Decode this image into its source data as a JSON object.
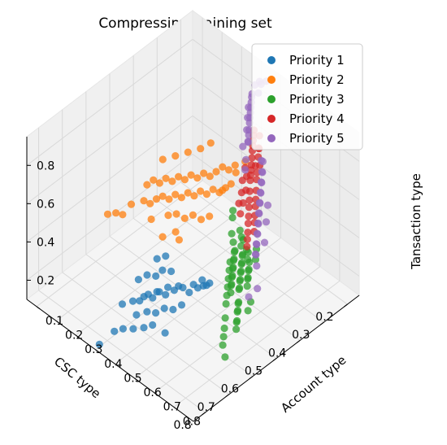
{
  "chart_data": {
    "type": "scatter",
    "projection": "3d",
    "title": "Compressing training set",
    "xlabel": "CSC type",
    "ylabel": "Account type",
    "zlabel": "Tansaction type",
    "xlim": [
      0.15,
      0.85
    ],
    "ylim": [
      0.05,
      0.9
    ],
    "zlim": [
      0.1,
      0.95
    ],
    "xticks": [
      "0.2",
      "0.3",
      "0.4",
      "0.5",
      "0.6",
      "0.7",
      "0.8"
    ],
    "yticks": [
      "0.1",
      "0.2",
      "0.3",
      "0.4",
      "0.5",
      "0.6",
      "0.7",
      "0.8"
    ],
    "zticks": [
      "0.2",
      "0.4",
      "0.6",
      "0.8"
    ],
    "grid": true,
    "legend_position": "top-right",
    "series": [
      {
        "name": "Priority 1",
        "color": "#1f77b4",
        "points": [
          [
            0.72,
            0.38,
            0.2
          ],
          [
            0.7,
            0.41,
            0.22
          ],
          [
            0.68,
            0.42,
            0.21
          ],
          [
            0.67,
            0.43,
            0.23
          ],
          [
            0.66,
            0.44,
            0.24
          ],
          [
            0.65,
            0.45,
            0.22
          ],
          [
            0.64,
            0.46,
            0.25
          ],
          [
            0.63,
            0.46,
            0.24
          ],
          [
            0.62,
            0.48,
            0.23
          ],
          [
            0.61,
            0.48,
            0.26
          ],
          [
            0.6,
            0.5,
            0.25
          ],
          [
            0.59,
            0.51,
            0.27
          ],
          [
            0.58,
            0.52,
            0.26
          ],
          [
            0.57,
            0.54,
            0.24
          ],
          [
            0.56,
            0.55,
            0.28
          ],
          [
            0.55,
            0.56,
            0.26
          ],
          [
            0.54,
            0.57,
            0.3
          ],
          [
            0.53,
            0.58,
            0.27
          ],
          [
            0.71,
            0.44,
            0.18
          ],
          [
            0.69,
            0.47,
            0.2
          ],
          [
            0.67,
            0.49,
            0.19
          ],
          [
            0.65,
            0.51,
            0.21
          ],
          [
            0.63,
            0.53,
            0.2
          ],
          [
            0.61,
            0.55,
            0.22
          ],
          [
            0.66,
            0.39,
            0.28
          ],
          [
            0.64,
            0.41,
            0.3
          ],
          [
            0.62,
            0.43,
            0.29
          ],
          [
            0.6,
            0.44,
            0.31
          ],
          [
            0.58,
            0.46,
            0.3
          ],
          [
            0.74,
            0.46,
            0.15
          ],
          [
            0.72,
            0.49,
            0.16
          ],
          [
            0.7,
            0.51,
            0.17
          ],
          [
            0.56,
            0.6,
            0.31
          ],
          [
            0.55,
            0.62,
            0.33
          ],
          [
            0.77,
            0.4,
            0.12
          ],
          [
            0.75,
            0.42,
            0.13
          ],
          [
            0.59,
            0.4,
            0.33
          ],
          [
            0.57,
            0.42,
            0.34
          ],
          [
            0.68,
            0.55,
            0.14
          ],
          [
            0.8,
            0.36,
            0.05
          ]
        ]
      },
      {
        "name": "Priority 2",
        "color": "#ff7f0e",
        "points": [
          [
            0.45,
            0.18,
            0.42
          ],
          [
            0.44,
            0.2,
            0.45
          ],
          [
            0.43,
            0.22,
            0.44
          ],
          [
            0.42,
            0.24,
            0.47
          ],
          [
            0.41,
            0.26,
            0.46
          ],
          [
            0.4,
            0.28,
            0.49
          ],
          [
            0.39,
            0.3,
            0.48
          ],
          [
            0.38,
            0.32,
            0.51
          ],
          [
            0.37,
            0.34,
            0.5
          ],
          [
            0.36,
            0.36,
            0.53
          ],
          [
            0.35,
            0.38,
            0.52
          ],
          [
            0.34,
            0.4,
            0.55
          ],
          [
            0.46,
            0.24,
            0.4
          ],
          [
            0.45,
            0.26,
            0.42
          ],
          [
            0.44,
            0.28,
            0.41
          ],
          [
            0.43,
            0.3,
            0.44
          ],
          [
            0.42,
            0.32,
            0.43
          ],
          [
            0.41,
            0.34,
            0.46
          ],
          [
            0.4,
            0.36,
            0.45
          ],
          [
            0.39,
            0.38,
            0.48
          ],
          [
            0.38,
            0.4,
            0.47
          ],
          [
            0.37,
            0.42,
            0.5
          ],
          [
            0.36,
            0.44,
            0.49
          ],
          [
            0.35,
            0.46,
            0.52
          ],
          [
            0.48,
            0.2,
            0.38
          ],
          [
            0.47,
            0.22,
            0.37
          ],
          [
            0.46,
            0.3,
            0.36
          ],
          [
            0.45,
            0.33,
            0.38
          ],
          [
            0.44,
            0.36,
            0.37
          ],
          [
            0.43,
            0.39,
            0.4
          ],
          [
            0.42,
            0.42,
            0.39
          ],
          [
            0.41,
            0.45,
            0.42
          ],
          [
            0.33,
            0.42,
            0.58
          ],
          [
            0.32,
            0.44,
            0.57
          ],
          [
            0.31,
            0.46,
            0.6
          ],
          [
            0.5,
            0.16,
            0.35
          ],
          [
            0.49,
            0.25,
            0.33
          ],
          [
            0.47,
            0.35,
            0.32
          ],
          [
            0.38,
            0.48,
            0.55
          ],
          [
            0.36,
            0.5,
            0.58
          ],
          [
            0.34,
            0.5,
            0.62
          ],
          [
            0.52,
            0.14,
            0.3
          ],
          [
            0.4,
            0.2,
            0.52
          ],
          [
            0.38,
            0.24,
            0.55
          ],
          [
            0.36,
            0.28,
            0.58
          ],
          [
            0.34,
            0.32,
            0.61
          ],
          [
            0.5,
            0.32,
            0.3
          ],
          [
            0.48,
            0.38,
            0.31
          ],
          [
            0.3,
            0.5,
            0.64
          ],
          [
            0.55,
            0.1,
            0.3
          ],
          [
            0.54,
            0.13,
            0.32
          ],
          [
            0.33,
            0.36,
            0.66
          ]
        ]
      },
      {
        "name": "Priority 3",
        "color": "#2ca02c",
        "points": [
          [
            0.45,
            0.62,
            0.45
          ],
          [
            0.46,
            0.64,
            0.43
          ],
          [
            0.47,
            0.65,
            0.44
          ],
          [
            0.48,
            0.66,
            0.42
          ],
          [
            0.49,
            0.67,
            0.43
          ],
          [
            0.5,
            0.68,
            0.41
          ],
          [
            0.51,
            0.69,
            0.42
          ],
          [
            0.52,
            0.7,
            0.4
          ],
          [
            0.53,
            0.71,
            0.41
          ],
          [
            0.54,
            0.72,
            0.39
          ],
          [
            0.55,
            0.73,
            0.4
          ],
          [
            0.56,
            0.74,
            0.38
          ],
          [
            0.44,
            0.6,
            0.47
          ],
          [
            0.45,
            0.66,
            0.46
          ],
          [
            0.46,
            0.68,
            0.44
          ],
          [
            0.47,
            0.69,
            0.45
          ],
          [
            0.48,
            0.7,
            0.43
          ],
          [
            0.49,
            0.71,
            0.44
          ],
          [
            0.5,
            0.72,
            0.42
          ],
          [
            0.51,
            0.73,
            0.43
          ],
          [
            0.52,
            0.74,
            0.41
          ],
          [
            0.53,
            0.75,
            0.42
          ],
          [
            0.54,
            0.76,
            0.4
          ],
          [
            0.55,
            0.77,
            0.41
          ],
          [
            0.43,
            0.63,
            0.5
          ],
          [
            0.44,
            0.65,
            0.49
          ],
          [
            0.45,
            0.67,
            0.5
          ],
          [
            0.46,
            0.7,
            0.48
          ],
          [
            0.47,
            0.72,
            0.49
          ],
          [
            0.48,
            0.73,
            0.47
          ],
          [
            0.49,
            0.75,
            0.48
          ],
          [
            0.5,
            0.76,
            0.46
          ],
          [
            0.51,
            0.77,
            0.47
          ],
          [
            0.52,
            0.78,
            0.45
          ],
          [
            0.53,
            0.79,
            0.46
          ],
          [
            0.54,
            0.8,
            0.44
          ],
          [
            0.56,
            0.78,
            0.36
          ],
          [
            0.57,
            0.79,
            0.37
          ],
          [
            0.58,
            0.8,
            0.35
          ],
          [
            0.59,
            0.81,
            0.36
          ],
          [
            0.6,
            0.82,
            0.33
          ],
          [
            0.61,
            0.83,
            0.34
          ],
          [
            0.62,
            0.84,
            0.32
          ],
          [
            0.42,
            0.58,
            0.52
          ],
          [
            0.41,
            0.57,
            0.54
          ],
          [
            0.5,
            0.66,
            0.38
          ],
          [
            0.52,
            0.68,
            0.37
          ],
          [
            0.54,
            0.7,
            0.36
          ],
          [
            0.56,
            0.72,
            0.35
          ],
          [
            0.58,
            0.74,
            0.34
          ],
          [
            0.48,
            0.64,
            0.39
          ],
          [
            0.6,
            0.76,
            0.3
          ],
          [
            0.62,
            0.78,
            0.28
          ],
          [
            0.64,
            0.8,
            0.27
          ],
          [
            0.55,
            0.83,
            0.39
          ],
          [
            0.57,
            0.84,
            0.37
          ],
          [
            0.66,
            0.82,
            0.26
          ],
          [
            0.7,
            0.88,
            0.28
          ],
          [
            0.46,
            0.75,
            0.52
          ],
          [
            0.48,
            0.77,
            0.5
          ]
        ]
      },
      {
        "name": "Priority 4",
        "color": "#d62728",
        "points": [
          [
            0.34,
            0.58,
            0.72
          ],
          [
            0.35,
            0.59,
            0.71
          ],
          [
            0.36,
            0.6,
            0.7
          ],
          [
            0.37,
            0.61,
            0.69
          ],
          [
            0.33,
            0.57,
            0.74
          ],
          [
            0.34,
            0.6,
            0.73
          ],
          [
            0.35,
            0.62,
            0.72
          ],
          [
            0.36,
            0.63,
            0.7
          ],
          [
            0.32,
            0.56,
            0.76
          ],
          [
            0.31,
            0.55,
            0.77
          ],
          [
            0.3,
            0.54,
            0.78
          ],
          [
            0.29,
            0.53,
            0.79
          ],
          [
            0.38,
            0.62,
            0.65
          ],
          [
            0.39,
            0.63,
            0.62
          ],
          [
            0.4,
            0.64,
            0.6
          ],
          [
            0.41,
            0.65,
            0.57
          ],
          [
            0.42,
            0.66,
            0.55
          ],
          [
            0.43,
            0.67,
            0.52
          ],
          [
            0.37,
            0.64,
            0.66
          ],
          [
            0.38,
            0.65,
            0.63
          ],
          [
            0.39,
            0.66,
            0.61
          ],
          [
            0.4,
            0.67,
            0.58
          ],
          [
            0.41,
            0.68,
            0.56
          ],
          [
            0.42,
            0.69,
            0.53
          ],
          [
            0.28,
            0.52,
            0.8
          ],
          [
            0.3,
            0.57,
            0.76
          ],
          [
            0.32,
            0.59,
            0.75
          ],
          [
            0.33,
            0.61,
            0.73
          ],
          [
            0.44,
            0.68,
            0.5
          ],
          [
            0.45,
            0.69,
            0.48
          ],
          [
            0.36,
            0.58,
            0.68
          ],
          [
            0.38,
            0.6,
            0.64
          ],
          [
            0.4,
            0.61,
            0.6
          ],
          [
            0.42,
            0.62,
            0.57
          ],
          [
            0.31,
            0.58,
            0.78
          ],
          [
            0.29,
            0.56,
            0.81
          ],
          [
            0.35,
            0.56,
            0.7
          ],
          [
            0.37,
            0.57,
            0.66
          ],
          [
            0.39,
            0.59,
            0.63
          ],
          [
            0.41,
            0.6,
            0.6
          ]
        ]
      },
      {
        "name": "Priority 5",
        "color": "#9467bd",
        "points": [
          [
            0.17,
            0.45,
            0.9
          ],
          [
            0.19,
            0.44,
            0.91
          ],
          [
            0.21,
            0.44,
            0.91
          ],
          [
            0.23,
            0.45,
            0.89
          ],
          [
            0.24,
            0.46,
            0.89
          ],
          [
            0.25,
            0.47,
            0.88
          ],
          [
            0.26,
            0.48,
            0.87
          ],
          [
            0.27,
            0.49,
            0.86
          ],
          [
            0.28,
            0.5,
            0.85
          ],
          [
            0.29,
            0.51,
            0.84
          ],
          [
            0.3,
            0.52,
            0.82
          ],
          [
            0.31,
            0.53,
            0.81
          ],
          [
            0.32,
            0.54,
            0.79
          ],
          [
            0.27,
            0.48,
            0.88
          ],
          [
            0.29,
            0.5,
            0.86
          ],
          [
            0.31,
            0.52,
            0.83
          ],
          [
            0.33,
            0.55,
            0.81
          ],
          [
            0.34,
            0.63,
            0.78
          ],
          [
            0.36,
            0.66,
            0.76
          ],
          [
            0.38,
            0.68,
            0.74
          ],
          [
            0.4,
            0.7,
            0.72
          ],
          [
            0.42,
            0.72,
            0.7
          ],
          [
            0.44,
            0.74,
            0.68
          ],
          [
            0.46,
            0.76,
            0.66
          ],
          [
            0.48,
            0.78,
            0.64
          ],
          [
            0.5,
            0.8,
            0.62
          ],
          [
            0.52,
            0.82,
            0.6
          ],
          [
            0.35,
            0.65,
            0.8
          ],
          [
            0.37,
            0.67,
            0.78
          ],
          [
            0.39,
            0.69,
            0.76
          ],
          [
            0.41,
            0.71,
            0.74
          ],
          [
            0.43,
            0.73,
            0.72
          ],
          [
            0.45,
            0.75,
            0.7
          ],
          [
            0.47,
            0.77,
            0.68
          ],
          [
            0.49,
            0.79,
            0.66
          ],
          [
            0.51,
            0.81,
            0.64
          ],
          [
            0.53,
            0.83,
            0.62
          ],
          [
            0.42,
            0.76,
            0.72
          ],
          [
            0.46,
            0.8,
            0.7
          ],
          [
            0.5,
            0.84,
            0.66
          ],
          [
            0.55,
            0.86,
            0.6
          ],
          [
            0.6,
            0.88,
            0.5
          ],
          [
            0.58,
            0.9,
            0.54
          ],
          [
            0.2,
            0.46,
            0.92
          ],
          [
            0.22,
            0.47,
            0.9
          ],
          [
            0.36,
            0.56,
            0.82
          ],
          [
            0.38,
            0.6,
            0.8
          ],
          [
            0.4,
            0.62,
            0.78
          ]
        ]
      }
    ]
  }
}
